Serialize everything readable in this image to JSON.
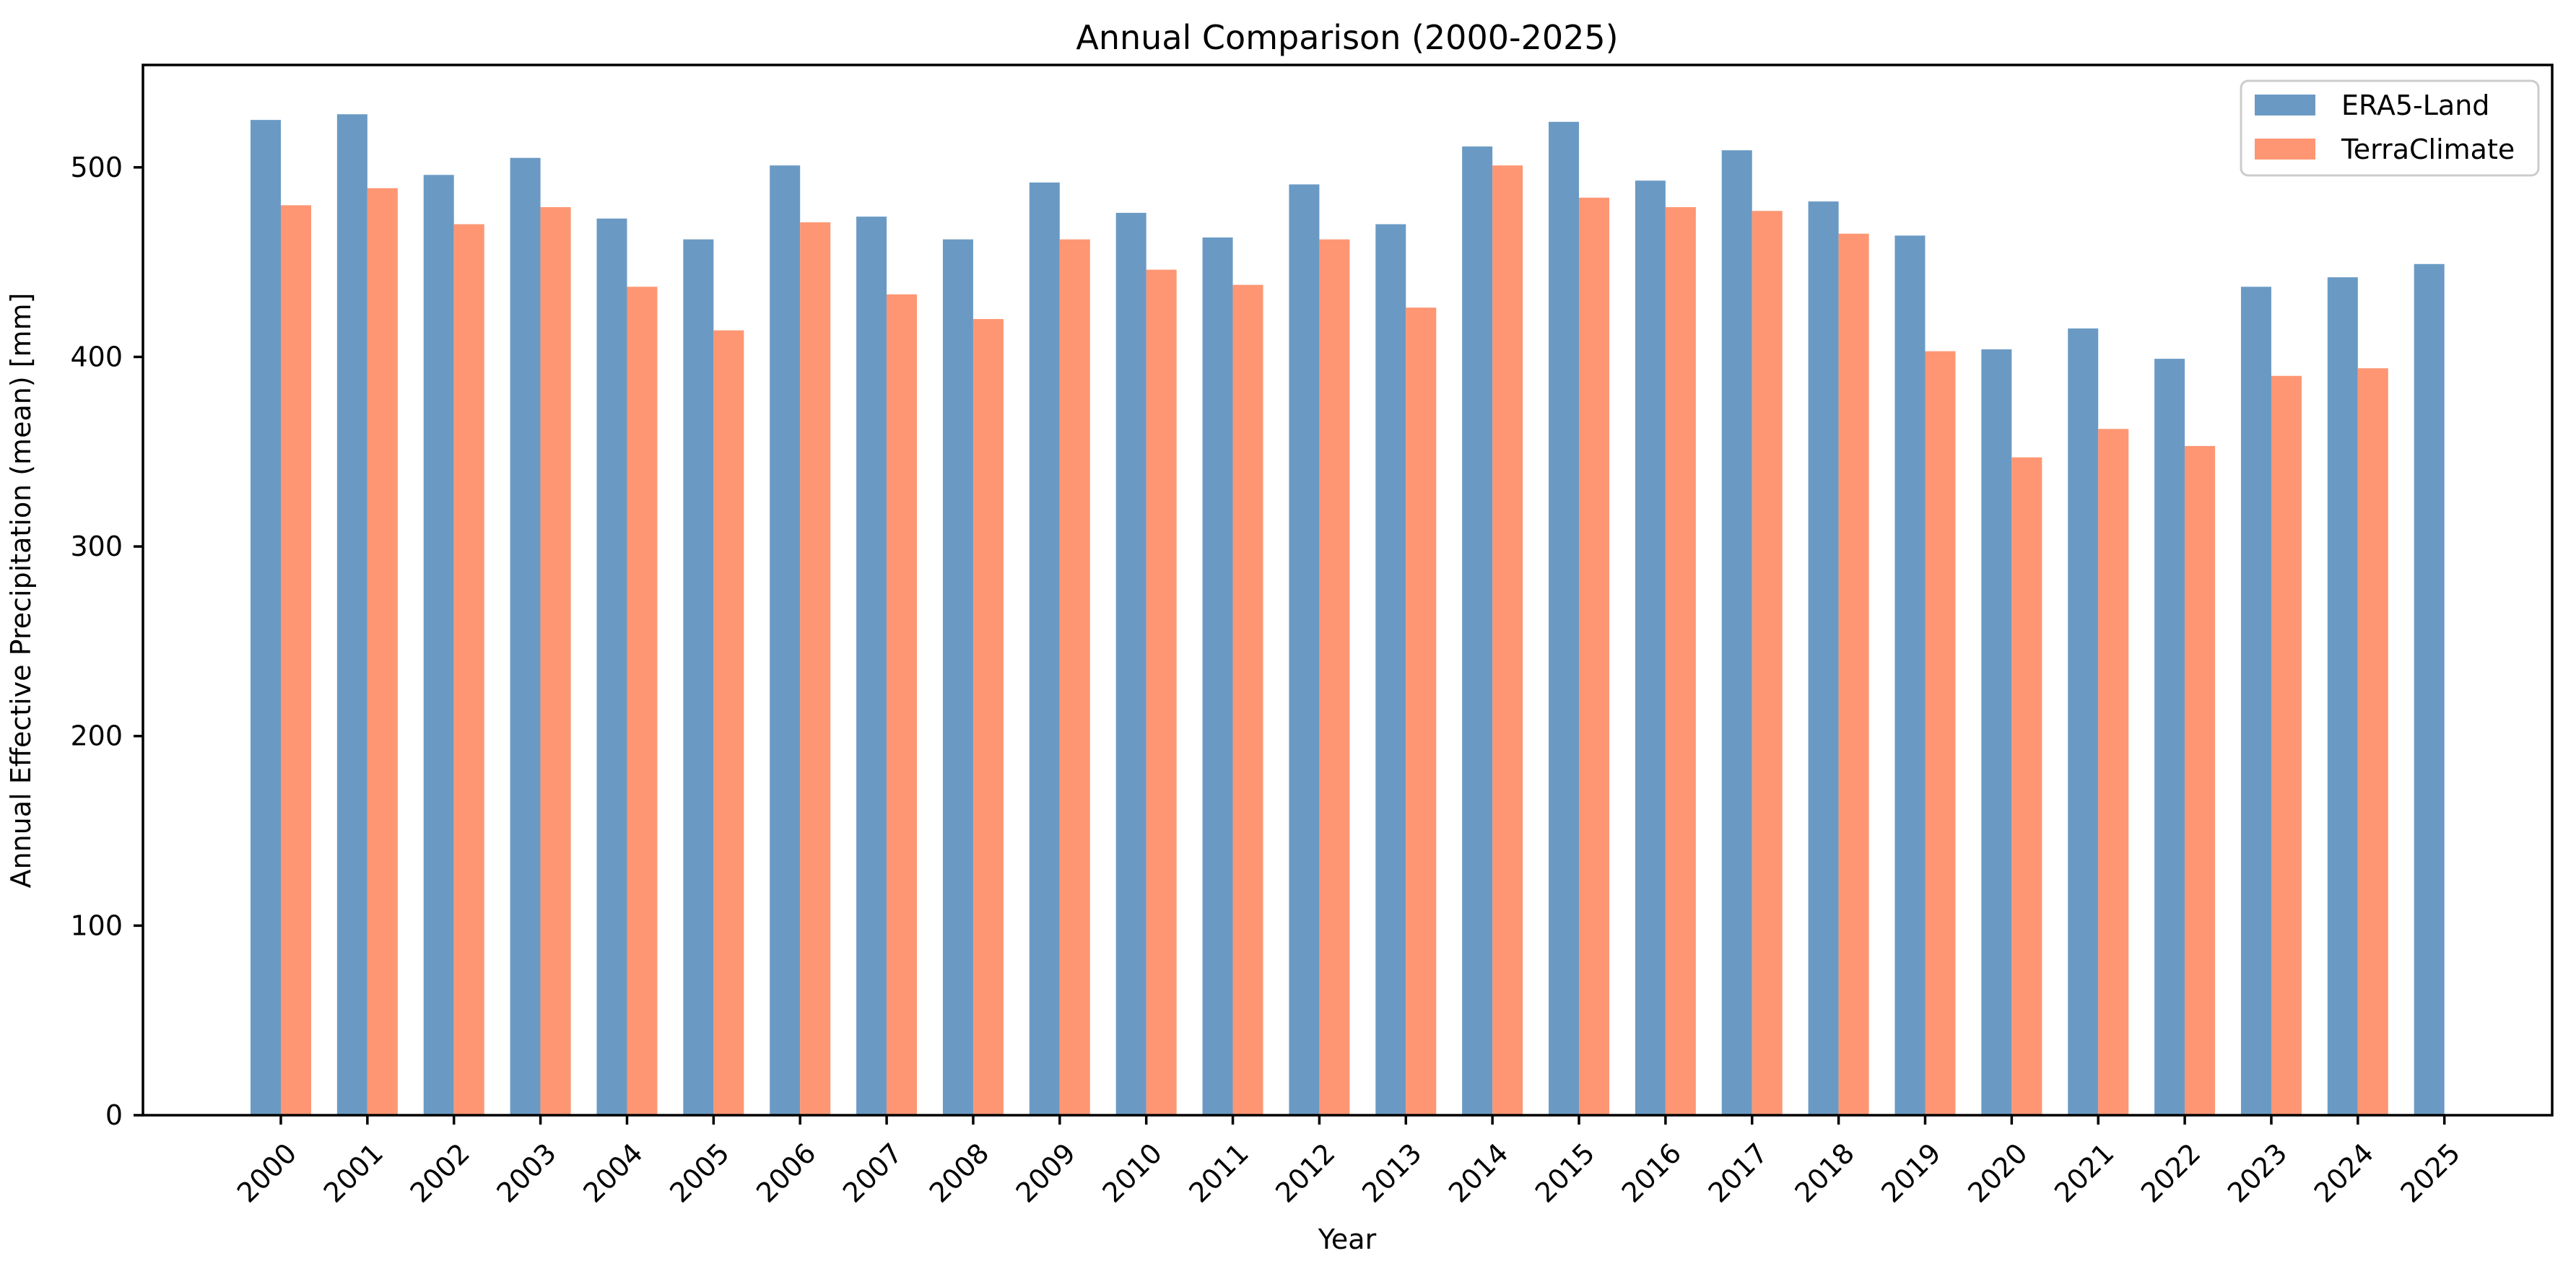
{
  "chart_data": {
    "type": "bar",
    "title": "Annual Comparison (2000-2025)",
    "xlabel": "Year",
    "ylabel": "Annual Effective Precipitation (mean) [mm]",
    "categories": [
      "2000",
      "2001",
      "2002",
      "2003",
      "2004",
      "2005",
      "2006",
      "2007",
      "2008",
      "2009",
      "2010",
      "2011",
      "2012",
      "2013",
      "2014",
      "2015",
      "2016",
      "2017",
      "2018",
      "2019",
      "2020",
      "2021",
      "2022",
      "2023",
      "2024",
      "2025"
    ],
    "series": [
      {
        "name": "ERA5-Land",
        "color": "#6a9ac4",
        "values": [
          525,
          528,
          496,
          505,
          473,
          462,
          501,
          474,
          462,
          492,
          476,
          463,
          491,
          470,
          511,
          524,
          493,
          509,
          482,
          464,
          404,
          415,
          399,
          437,
          442,
          449
        ]
      },
      {
        "name": "TerraClimate",
        "color": "#fe9673",
        "values": [
          480,
          489,
          470,
          479,
          437,
          414,
          471,
          433,
          420,
          462,
          446,
          438,
          462,
          426,
          501,
          484,
          479,
          477,
          465,
          403,
          347,
          362,
          353,
          390,
          394,
          null
        ]
      }
    ],
    "ylim": [
      0,
      554
    ],
    "yticks": [
      0,
      100,
      200,
      300,
      400,
      500
    ],
    "legend_position": "upper right",
    "grid": false,
    "background_color": "#ffffff",
    "spine_color": "#000000",
    "legend_border_color": "#cccccc"
  }
}
